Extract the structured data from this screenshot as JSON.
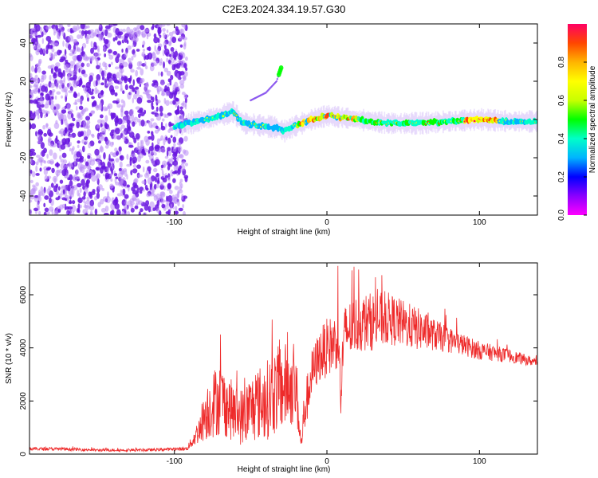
{
  "title": "C2E3.2024.334.19.57.G30",
  "colors": {
    "snr_line": "#ee2a2a",
    "points": "#6a16e0",
    "points_light": "#b98cf5",
    "colorbar": [
      "#ff00ff",
      "#8a00ff",
      "#0000ff",
      "#00b4ff",
      "#00ffc8",
      "#00ff00",
      "#c8ff00",
      "#ffff00",
      "#ffb400",
      "#ff4600",
      "#ff0064"
    ]
  },
  "chart_data": [
    {
      "type": "heatmap",
      "xlabel": "Height of straight line (km)",
      "ylabel": "Frequency (Hz)",
      "xlim": [
        -195,
        138
      ],
      "ylim": [
        -50,
        50
      ],
      "xticks": [
        -100,
        0,
        100
      ],
      "xtick_labels": [
        "-100",
        "0",
        "100"
      ],
      "yticks": [
        -40,
        -20,
        0,
        20,
        40
      ],
      "ytick_labels": [
        "-40",
        "-20",
        "0",
        "20",
        "40"
      ],
      "grid": false,
      "colorbar": {
        "label": "Normalized spectral amplitude",
        "range": [
          0,
          1
        ],
        "ticks": [
          0.0,
          0.2,
          0.4,
          0.6,
          0.8
        ],
        "tick_labels": [
          "0.0",
          "0.2",
          "0.4",
          "0.6",
          "0.8"
        ]
      },
      "noise_region_x": [
        -195,
        -92
      ],
      "ridge": [
        {
          "x": -100,
          "f": -3.5
        },
        {
          "x": -90,
          "f": -2
        },
        {
          "x": -80,
          "f": 0
        },
        {
          "x": -70,
          "f": 2
        },
        {
          "x": -62,
          "f": 4
        },
        {
          "x": -55,
          "f": -2
        },
        {
          "x": -45,
          "f": -3
        },
        {
          "x": -35,
          "f": -4
        },
        {
          "x": -28,
          "f": -6
        },
        {
          "x": -20,
          "f": -3
        },
        {
          "x": -10,
          "f": 0
        },
        {
          "x": 0,
          "f": 2
        },
        {
          "x": 10,
          "f": 1
        },
        {
          "x": 20,
          "f": 0
        },
        {
          "x": 40,
          "f": -2
        },
        {
          "x": 60,
          "f": -2
        },
        {
          "x": 80,
          "f": -1
        },
        {
          "x": 100,
          "f": 0
        },
        {
          "x": 120,
          "f": -1
        },
        {
          "x": 138,
          "f": -1
        }
      ],
      "branch": [
        {
          "x": -50,
          "f": 10
        },
        {
          "x": -40,
          "f": 14
        },
        {
          "x": -33,
          "f": 20
        },
        {
          "x": -30,
          "f": 27
        }
      ]
    },
    {
      "type": "line",
      "xlabel": "Height of straight line (km)",
      "ylabel": "SNR (10 * v/v)",
      "xlim": [
        -195,
        138
      ],
      "ylim": [
        0,
        7200
      ],
      "xticks": [
        -100,
        0,
        100
      ],
      "xtick_labels": [
        "-100",
        "0",
        "100"
      ],
      "yticks": [
        0,
        2000,
        4000,
        6000
      ],
      "ytick_labels": [
        "0",
        "2000",
        "4000",
        "6000"
      ],
      "grid": false,
      "series": [
        {
          "x": [
            -195,
            -170,
            -150,
            -120,
            -92,
            -88,
            -84,
            -80,
            -75,
            -70,
            -65,
            -60,
            -55,
            -50,
            -45,
            -40,
            -35,
            -30,
            -25,
            -20,
            -17,
            -15,
            -10,
            -5,
            0,
            5,
            8,
            9,
            10,
            12,
            15,
            20,
            30,
            40,
            50,
            60,
            70,
            80,
            90,
            100,
            110,
            120,
            130,
            138
          ],
          "y": [
            200,
            190,
            150,
            150,
            200,
            500,
            900,
            1500,
            1900,
            2100,
            1800,
            1500,
            1400,
            1700,
            1900,
            2000,
            2300,
            2500,
            2600,
            2400,
            300,
            1500,
            3000,
            3700,
            4000,
            4200,
            4400,
            1500,
            3500,
            4600,
            4700,
            4900,
            5000,
            5100,
            4900,
            4700,
            4500,
            4300,
            4100,
            3900,
            3800,
            3700,
            3550,
            3450
          ],
          "spread": [
            60,
            60,
            50,
            50,
            70,
            250,
            500,
            1000,
            1300,
            1400,
            1200,
            1100,
            1100,
            1300,
            1400,
            1500,
            1600,
            1700,
            1600,
            1300,
            300,
            900,
            900,
            1000,
            1100,
            1100,
            1100,
            600,
            900,
            1100,
            1100,
            1100,
            1100,
            1000,
            900,
            800,
            600,
            500,
            400,
            350,
            300,
            250,
            200,
            150
          ]
        }
      ]
    }
  ]
}
